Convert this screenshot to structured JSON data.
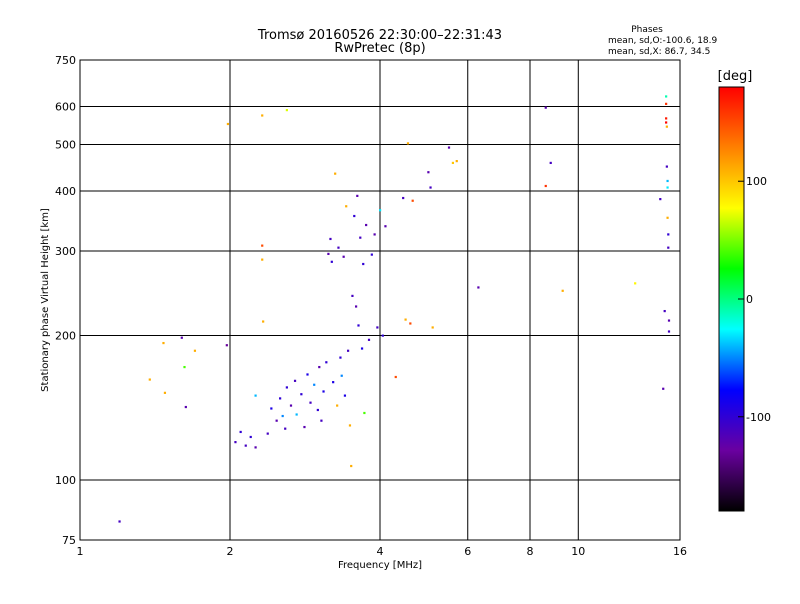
{
  "chart_data": {
    "type": "scatter",
    "title": "Tromsø 20160526 22:30:00–22:31:43",
    "subtitle": "RwPretec (8p)",
    "annotation": {
      "heading": "Phases",
      "line1": "mean, sd,O:-100.6, 18.9",
      "line2": "mean, sd,X:  86.7, 34.5"
    },
    "xlabel": "Frequency [MHz]",
    "ylabel": "Stationary phase Virtual Height [km]",
    "xscale": "log",
    "yscale": "log",
    "xlim": [
      1,
      16
    ],
    "ylim": [
      75,
      750
    ],
    "x_ticks": [
      1,
      2,
      4,
      6,
      8,
      10,
      16
    ],
    "x_tick_labels": [
      "1",
      "2",
      "4",
      "6",
      "8",
      "10",
      "16"
    ],
    "y_ticks": [
      75,
      100,
      200,
      300,
      400,
      500,
      600,
      750
    ],
    "y_tick_labels": [
      "75",
      "100",
      "200",
      "300",
      "400",
      "500",
      "600",
      "750"
    ],
    "grid": true,
    "colorbar": {
      "label": "[deg]",
      "min": -180,
      "max": 180,
      "ticks": [
        -100,
        0,
        100
      ],
      "tick_labels": [
        "-100",
        "0",
        "100"
      ],
      "colormap": [
        "#000000",
        "#6a00a0",
        "#0000ff",
        "#00ffff",
        "#00ff00",
        "#ffff00",
        "#ff8000",
        "#ff0000"
      ]
    },
    "points": [
      {
        "x": 1.2,
        "y": 82,
        "phase": -110
      },
      {
        "x": 1.38,
        "y": 162,
        "phase": 110
      },
      {
        "x": 1.47,
        "y": 193,
        "phase": 110
      },
      {
        "x": 1.48,
        "y": 152,
        "phase": 110
      },
      {
        "x": 1.6,
        "y": 198,
        "phase": -120
      },
      {
        "x": 1.62,
        "y": 172,
        "phase": 40
      },
      {
        "x": 1.63,
        "y": 142,
        "phase": -120
      },
      {
        "x": 1.7,
        "y": 186,
        "phase": 110
      },
      {
        "x": 1.97,
        "y": 191,
        "phase": -130
      },
      {
        "x": 1.98,
        "y": 552,
        "phase": 110
      },
      {
        "x": 2.05,
        "y": 120,
        "phase": -110
      },
      {
        "x": 2.1,
        "y": 126,
        "phase": -100
      },
      {
        "x": 2.15,
        "y": 118,
        "phase": -110
      },
      {
        "x": 2.2,
        "y": 123,
        "phase": -100
      },
      {
        "x": 2.25,
        "y": 117,
        "phase": -120
      },
      {
        "x": 2.25,
        "y": 150,
        "phase": -40
      },
      {
        "x": 2.32,
        "y": 575,
        "phase": 110
      },
      {
        "x": 2.32,
        "y": 308,
        "phase": 150
      },
      {
        "x": 2.32,
        "y": 288,
        "phase": 110
      },
      {
        "x": 2.33,
        "y": 214,
        "phase": 110
      },
      {
        "x": 2.38,
        "y": 125,
        "phase": -110
      },
      {
        "x": 2.42,
        "y": 141,
        "phase": -90
      },
      {
        "x": 2.48,
        "y": 133,
        "phase": -120
      },
      {
        "x": 2.52,
        "y": 148,
        "phase": -100
      },
      {
        "x": 2.55,
        "y": 136,
        "phase": -50
      },
      {
        "x": 2.58,
        "y": 128,
        "phase": -110
      },
      {
        "x": 2.6,
        "y": 590,
        "phase": 70
      },
      {
        "x": 2.6,
        "y": 156,
        "phase": -100
      },
      {
        "x": 2.65,
        "y": 143,
        "phase": -120
      },
      {
        "x": 2.7,
        "y": 161,
        "phase": -110
      },
      {
        "x": 2.72,
        "y": 137,
        "phase": -40
      },
      {
        "x": 2.78,
        "y": 151,
        "phase": -100
      },
      {
        "x": 2.82,
        "y": 129,
        "phase": -120
      },
      {
        "x": 2.86,
        "y": 166,
        "phase": -90
      },
      {
        "x": 2.9,
        "y": 145,
        "phase": -110
      },
      {
        "x": 2.95,
        "y": 158,
        "phase": -50
      },
      {
        "x": 3.0,
        "y": 140,
        "phase": -100
      },
      {
        "x": 3.02,
        "y": 172,
        "phase": -120
      },
      {
        "x": 3.05,
        "y": 133,
        "phase": -110
      },
      {
        "x": 3.08,
        "y": 153,
        "phase": -90
      },
      {
        "x": 3.12,
        "y": 176,
        "phase": -100
      },
      {
        "x": 3.15,
        "y": 296,
        "phase": -120
      },
      {
        "x": 3.18,
        "y": 318,
        "phase": -110
      },
      {
        "x": 3.2,
        "y": 285,
        "phase": -100
      },
      {
        "x": 3.22,
        "y": 160,
        "phase": -90
      },
      {
        "x": 3.25,
        "y": 435,
        "phase": 110
      },
      {
        "x": 3.28,
        "y": 143,
        "phase": 110
      },
      {
        "x": 3.3,
        "y": 305,
        "phase": -110
      },
      {
        "x": 3.33,
        "y": 180,
        "phase": -100
      },
      {
        "x": 3.35,
        "y": 165,
        "phase": -50
      },
      {
        "x": 3.38,
        "y": 292,
        "phase": -120
      },
      {
        "x": 3.4,
        "y": 150,
        "phase": -90
      },
      {
        "x": 3.42,
        "y": 372,
        "phase": 110
      },
      {
        "x": 3.45,
        "y": 186,
        "phase": -110
      },
      {
        "x": 3.48,
        "y": 130,
        "phase": 110
      },
      {
        "x": 3.5,
        "y": 107,
        "phase": 110
      },
      {
        "x": 3.52,
        "y": 242,
        "phase": -110
      },
      {
        "x": 3.55,
        "y": 355,
        "phase": -100
      },
      {
        "x": 3.58,
        "y": 230,
        "phase": -120
      },
      {
        "x": 3.6,
        "y": 391,
        "phase": -120
      },
      {
        "x": 3.62,
        "y": 210,
        "phase": -100
      },
      {
        "x": 3.65,
        "y": 320,
        "phase": -110
      },
      {
        "x": 3.68,
        "y": 188,
        "phase": -90
      },
      {
        "x": 3.7,
        "y": 282,
        "phase": -100
      },
      {
        "x": 3.72,
        "y": 138,
        "phase": 40
      },
      {
        "x": 3.75,
        "y": 340,
        "phase": -120
      },
      {
        "x": 3.8,
        "y": 196,
        "phase": -110
      },
      {
        "x": 3.85,
        "y": 295,
        "phase": -100
      },
      {
        "x": 3.9,
        "y": 325,
        "phase": -120
      },
      {
        "x": 3.95,
        "y": 208,
        "phase": -110
      },
      {
        "x": 4.0,
        "y": 365,
        "phase": -30
      },
      {
        "x": 4.05,
        "y": 200,
        "phase": -100
      },
      {
        "x": 4.1,
        "y": 338,
        "phase": -120
      },
      {
        "x": 4.3,
        "y": 164,
        "phase": 150
      },
      {
        "x": 4.45,
        "y": 387,
        "phase": -110
      },
      {
        "x": 4.5,
        "y": 216,
        "phase": 110
      },
      {
        "x": 4.55,
        "y": 503,
        "phase": 110
      },
      {
        "x": 4.6,
        "y": 212,
        "phase": 150
      },
      {
        "x": 4.65,
        "y": 382,
        "phase": 150
      },
      {
        "x": 5.0,
        "y": 438,
        "phase": -120
      },
      {
        "x": 5.05,
        "y": 407,
        "phase": -110
      },
      {
        "x": 5.1,
        "y": 208,
        "phase": 110
      },
      {
        "x": 5.5,
        "y": 493,
        "phase": -120
      },
      {
        "x": 5.6,
        "y": 458,
        "phase": 100
      },
      {
        "x": 5.7,
        "y": 462,
        "phase": 110
      },
      {
        "x": 6.3,
        "y": 252,
        "phase": -120
      },
      {
        "x": 8.6,
        "y": 597,
        "phase": -120
      },
      {
        "x": 8.6,
        "y": 410,
        "phase": 160
      },
      {
        "x": 8.8,
        "y": 458,
        "phase": -110
      },
      {
        "x": 9.3,
        "y": 248,
        "phase": 110
      },
      {
        "x": 13.0,
        "y": 257,
        "phase": 80
      },
      {
        "x": 14.6,
        "y": 385,
        "phase": -110
      },
      {
        "x": 14.8,
        "y": 155,
        "phase": -120
      },
      {
        "x": 14.9,
        "y": 225,
        "phase": -110
      },
      {
        "x": 15.0,
        "y": 630,
        "phase": -10
      },
      {
        "x": 15.0,
        "y": 608,
        "phase": 160
      },
      {
        "x": 15.0,
        "y": 567,
        "phase": 170
      },
      {
        "x": 15.0,
        "y": 556,
        "phase": 180
      },
      {
        "x": 15.05,
        "y": 545,
        "phase": 110
      },
      {
        "x": 15.05,
        "y": 450,
        "phase": -110
      },
      {
        "x": 15.1,
        "y": 420,
        "phase": -40
      },
      {
        "x": 15.1,
        "y": 407,
        "phase": -30
      },
      {
        "x": 15.1,
        "y": 352,
        "phase": 110
      },
      {
        "x": 15.15,
        "y": 325,
        "phase": -100
      },
      {
        "x": 15.15,
        "y": 305,
        "phase": -110
      },
      {
        "x": 15.2,
        "y": 215,
        "phase": -120
      },
      {
        "x": 15.2,
        "y": 204,
        "phase": -110
      }
    ]
  }
}
